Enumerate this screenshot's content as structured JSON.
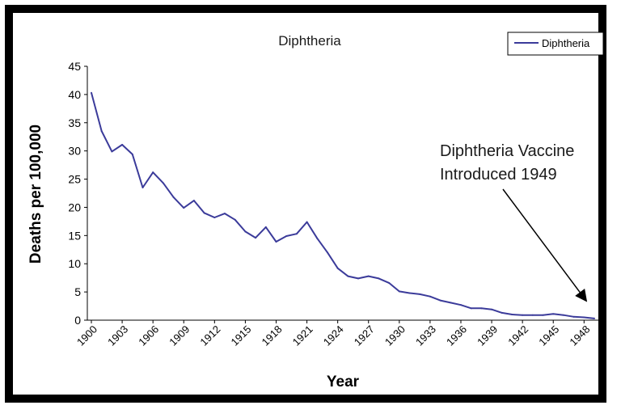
{
  "chart_data": {
    "type": "line",
    "title": "Diphtheria",
    "xlabel": "Year",
    "ylabel": "Deaths per 100,000",
    "ylim": [
      0,
      45
    ],
    "yticks": [
      0,
      5,
      10,
      15,
      20,
      25,
      30,
      35,
      40,
      45
    ],
    "xtick_labels": [
      "1900",
      "1903",
      "1906",
      "1909",
      "1912",
      "1915",
      "1918",
      "1921",
      "1924",
      "1927",
      "1930",
      "1933",
      "1936",
      "1939",
      "1942",
      "1945",
      "1948"
    ],
    "legend": {
      "position": "top-right",
      "entries": [
        "Diphtheria"
      ]
    },
    "grid": false,
    "series": [
      {
        "name": "Diphtheria",
        "color": "#3b3b9a",
        "x": [
          1900,
          1901,
          1902,
          1903,
          1904,
          1905,
          1906,
          1907,
          1908,
          1909,
          1910,
          1911,
          1912,
          1913,
          1914,
          1915,
          1916,
          1917,
          1918,
          1919,
          1920,
          1921,
          1922,
          1923,
          1924,
          1925,
          1926,
          1927,
          1928,
          1929,
          1930,
          1931,
          1932,
          1933,
          1934,
          1935,
          1936,
          1937,
          1938,
          1939,
          1940,
          1941,
          1942,
          1943,
          1944,
          1945,
          1946,
          1947,
          1948,
          1949
        ],
        "values": [
          40.3,
          33.5,
          29.9,
          31.1,
          29.4,
          23.5,
          26.2,
          24.3,
          21.8,
          19.9,
          21.2,
          19.0,
          18.2,
          18.9,
          17.8,
          15.7,
          14.6,
          16.5,
          13.9,
          14.9,
          15.3,
          17.4,
          14.5,
          12.0,
          9.2,
          7.8,
          7.4,
          7.8,
          7.4,
          6.6,
          5.1,
          4.8,
          4.6,
          4.2,
          3.5,
          3.1,
          2.7,
          2.1,
          2.1,
          1.9,
          1.3,
          1.0,
          0.9,
          0.9,
          0.9,
          1.1,
          0.9,
          0.6,
          0.5,
          0.3
        ]
      }
    ],
    "annotations": [
      {
        "lines": [
          "Diphtheria Vaccine",
          "Introduced 1949"
        ],
        "arrow_to": {
          "x": 1948,
          "y": 3
        }
      }
    ]
  }
}
